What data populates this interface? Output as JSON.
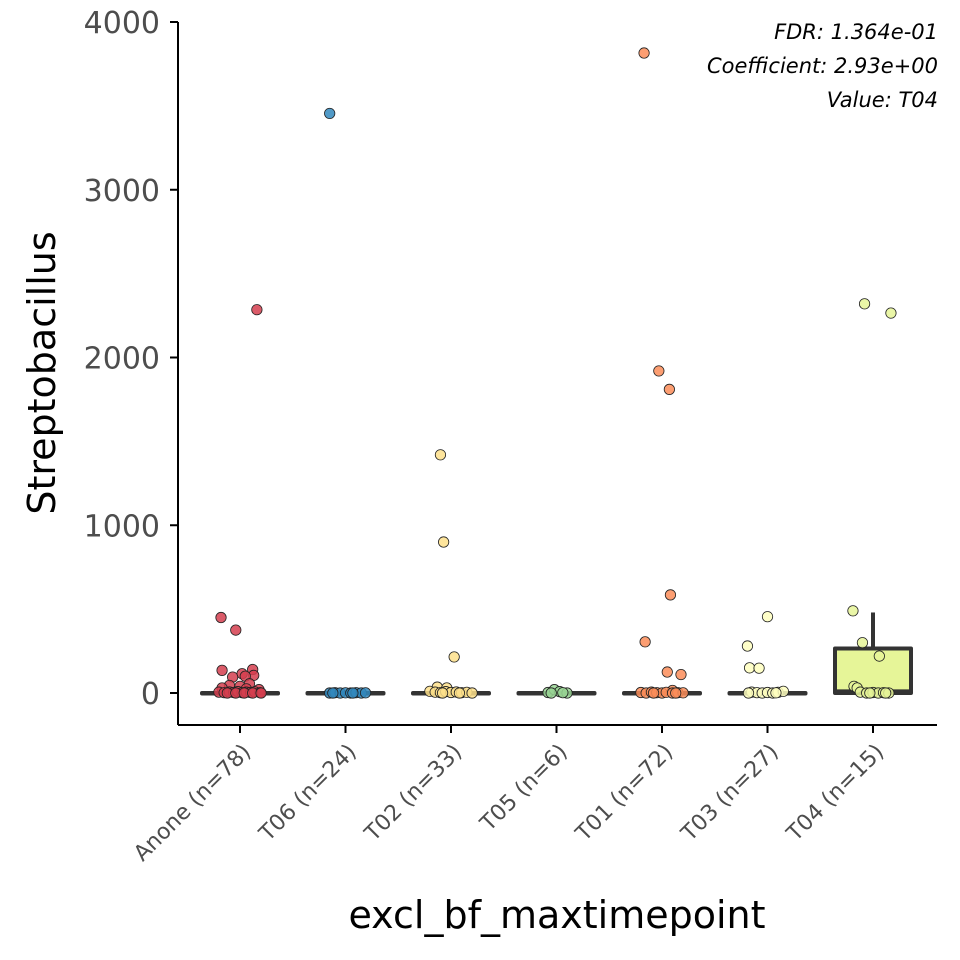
{
  "chart_data": {
    "type": "box",
    "xlabel": "excl_bf_maxtimepoint",
    "ylabel": "Streptobacillus",
    "ylim": [
      -190,
      4000
    ],
    "yticks": [
      0,
      1000,
      2000,
      3000,
      4000
    ],
    "annotations": [
      "FDR: 1.364e-01",
      "Coefficient: 2.93e+00",
      "Value: T04"
    ],
    "legend": "none",
    "grid": false,
    "groups": [
      {
        "category": "Anone (n=78)",
        "color": "#d53e4f",
        "box": {
          "q1": 0,
          "median": 0,
          "q3": 0,
          "whisker_low": 0,
          "whisker_high": 0
        },
        "points": [
          [
            -0.18,
            450
          ],
          [
            -0.04,
            375
          ],
          [
            0.16,
            2285
          ],
          [
            -0.17,
            135
          ],
          [
            0.02,
            115
          ],
          [
            0.12,
            140
          ],
          [
            0.13,
            105
          ],
          [
            -0.07,
            95
          ],
          [
            0.05,
            100
          ],
          [
            -0.1,
            45
          ],
          [
            0.0,
            40
          ],
          [
            0.09,
            55
          ],
          [
            -0.17,
            30
          ],
          [
            0.06,
            25
          ],
          [
            0.18,
            20
          ],
          [
            -0.2,
            5
          ],
          [
            -0.15,
            2
          ],
          [
            -0.1,
            6
          ],
          [
            -0.06,
            3
          ],
          [
            -0.02,
            8
          ],
          [
            0.02,
            2
          ],
          [
            0.06,
            5
          ],
          [
            0.1,
            3
          ],
          [
            0.14,
            7
          ],
          [
            0.19,
            2
          ],
          [
            -0.12,
            0
          ],
          [
            -0.04,
            0
          ],
          [
            0.04,
            0
          ],
          [
            0.12,
            0
          ],
          [
            0.2,
            0
          ]
        ]
      },
      {
        "category": "T06 (n=24)",
        "color": "#3288bd",
        "box": {
          "q1": 0,
          "median": 0,
          "q3": 0,
          "whisker_low": 0,
          "whisker_high": 0
        },
        "points": [
          [
            -0.15,
            0
          ],
          [
            -0.1,
            2
          ],
          [
            -0.05,
            0
          ],
          [
            0.0,
            1
          ],
          [
            0.05,
            0
          ],
          [
            0.1,
            2
          ],
          [
            0.15,
            0
          ],
          [
            0.19,
            1
          ],
          [
            -0.12,
            0
          ],
          [
            0.07,
            0
          ],
          [
            -0.15,
            3455
          ]
        ]
      },
      {
        "category": "T02 (n=33)",
        "color": "#fee08b",
        "box": {
          "q1": 0,
          "median": 0,
          "q3": 0,
          "whisker_low": 0,
          "whisker_high": 0
        },
        "points": [
          [
            -0.1,
            1420
          ],
          [
            -0.07,
            900
          ],
          [
            0.03,
            215
          ],
          [
            -0.13,
            35
          ],
          [
            -0.04,
            30
          ],
          [
            -0.2,
            10
          ],
          [
            -0.15,
            5
          ],
          [
            -0.1,
            2
          ],
          [
            -0.05,
            8
          ],
          [
            0.0,
            3
          ],
          [
            0.05,
            6
          ],
          [
            0.1,
            2
          ],
          [
            0.15,
            4
          ],
          [
            0.2,
            0
          ],
          [
            -0.08,
            0
          ],
          [
            0.08,
            0
          ]
        ]
      },
      {
        "category": "T05 (n=6)",
        "color": "#99d594",
        "box": {
          "q1": 0,
          "median": 0,
          "q3": 0,
          "whisker_low": 0,
          "whisker_high": 0
        },
        "points": [
          [
            -0.08,
            3
          ],
          [
            -0.02,
            20
          ],
          [
            0.03,
            8
          ],
          [
            0.1,
            0
          ],
          [
            -0.05,
            0
          ],
          [
            0.06,
            2
          ]
        ]
      },
      {
        "category": "T01 (n=72)",
        "color": "#fc8d59",
        "box": {
          "q1": 0,
          "median": 0,
          "q3": 0,
          "whisker_low": 0,
          "whisker_high": 0
        },
        "points": [
          [
            -0.17,
            3815
          ],
          [
            -0.03,
            1920
          ],
          [
            0.07,
            1810
          ],
          [
            0.08,
            585
          ],
          [
            -0.16,
            305
          ],
          [
            0.05,
            125
          ],
          [
            0.18,
            110
          ],
          [
            0.1,
            15
          ],
          [
            -0.2,
            3
          ],
          [
            -0.15,
            0
          ],
          [
            -0.1,
            5
          ],
          [
            -0.05,
            2
          ],
          [
            0.0,
            0
          ],
          [
            0.04,
            4
          ],
          [
            0.1,
            0
          ],
          [
            0.15,
            2
          ],
          [
            0.2,
            1
          ],
          [
            -0.08,
            0
          ],
          [
            0.13,
            0
          ]
        ]
      },
      {
        "category": "T03 (n=27)",
        "color": "#ffffbf",
        "box": {
          "q1": 0,
          "median": 0,
          "q3": 0,
          "whisker_low": 0,
          "whisker_high": 0
        },
        "points": [
          [
            0.0,
            455
          ],
          [
            -0.19,
            280
          ],
          [
            -0.17,
            150
          ],
          [
            -0.08,
            148
          ],
          [
            -0.15,
            5
          ],
          [
            -0.1,
            2
          ],
          [
            -0.05,
            0
          ],
          [
            0.0,
            3
          ],
          [
            0.05,
            0
          ],
          [
            0.1,
            4
          ],
          [
            0.15,
            10
          ],
          [
            -0.18,
            0
          ],
          [
            0.08,
            1
          ]
        ]
      },
      {
        "category": "T04 (n=15)",
        "color": "#e6f598",
        "box": {
          "q1": 0,
          "median": 10,
          "q3": 265,
          "whisker_low": 0,
          "whisker_high": 480
        },
        "points": [
          [
            -0.08,
            2320
          ],
          [
            0.17,
            2265
          ],
          [
            -0.19,
            490
          ],
          [
            -0.1,
            300
          ],
          [
            0.06,
            220
          ],
          [
            -0.18,
            40
          ],
          [
            -0.15,
            30
          ],
          [
            -0.12,
            5
          ],
          [
            -0.06,
            0
          ],
          [
            0.0,
            3
          ],
          [
            0.05,
            0
          ],
          [
            0.1,
            2
          ],
          [
            0.15,
            0
          ],
          [
            -0.03,
            0
          ],
          [
            0.12,
            0
          ]
        ]
      }
    ]
  }
}
